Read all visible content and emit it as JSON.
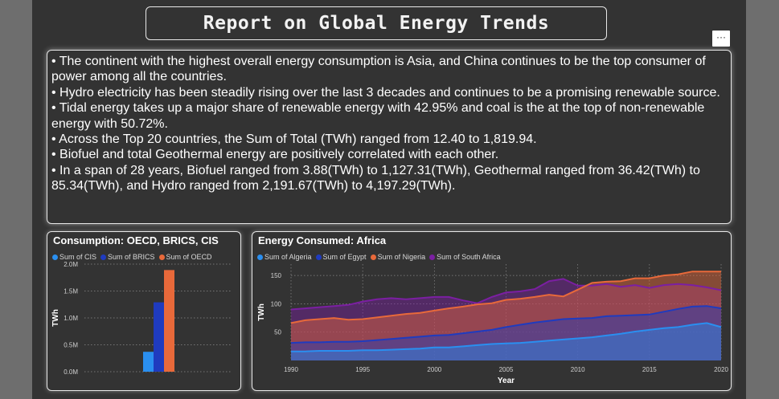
{
  "report": {
    "title": "Report on Global Energy Trends",
    "more_label": "···",
    "bullets": [
      "• The continent with the highest overall energy consumption is Asia, and China continues to be the top consumer of power among all the countries.",
      "• Hydro electricity has been steadily rising over the last 3 decades and continues to be a promising renewable source.",
      "• Tidal energy takes up a major share of renewable energy with 42.95% and coal is the at the top of non-renewable energy with 50.72%.",
      "• Across the Top 20 countries, the Sum of Total (TWh) ranged from 12.40 to 1,819.94.",
      "• Biofuel and total Geothermal energy are positively correlated with each other.",
      "• In a span of 28 years, Biofuel ranged from 3.88(TWh) to 1,127.31(TWh), Geothermal ranged from 36.42(TWh) to 85.34(TWh), and Hydro ranged from 2,191.67(TWh) to 4,197.29(TWh)."
    ]
  },
  "chart_data": [
    {
      "type": "bar",
      "title": "Consumption: OECD, BRICS, CIS",
      "ylabel": "TWh",
      "xlabel": "",
      "ylim": [
        0,
        2000000
      ],
      "yticks": [
        0,
        500000,
        1000000,
        1500000,
        2000000
      ],
      "ytick_labels": [
        "0.0M",
        "0.5M",
        "1.0M",
        "1.5M",
        "2.0M"
      ],
      "grid": true,
      "legend_position": "top-left",
      "categories": [
        ""
      ],
      "series": [
        {
          "name": "Sum of CIS",
          "color": "#2a8ff0",
          "values": [
            370000
          ]
        },
        {
          "name": "Sum of BRICS",
          "color": "#1f3bbf",
          "values": [
            1290000
          ]
        },
        {
          "name": "Sum of OECD",
          "color": "#e8693a",
          "values": [
            1890000
          ]
        }
      ]
    },
    {
      "type": "area",
      "title": "Energy Consumed: Africa",
      "xlabel": "Year",
      "ylabel": "TWh",
      "xlim": [
        1990,
        2020
      ],
      "ylim": [
        0,
        170
      ],
      "xticks": [
        1990,
        1995,
        2000,
        2005,
        2010,
        2015,
        2020
      ],
      "yticks": [
        50,
        100,
        150
      ],
      "grid": true,
      "legend_position": "top-left",
      "x": [
        1990,
        1991,
        1992,
        1993,
        1994,
        1995,
        1996,
        1997,
        1998,
        1999,
        2000,
        2001,
        2002,
        2003,
        2004,
        2005,
        2006,
        2007,
        2008,
        2009,
        2010,
        2011,
        2012,
        2013,
        2014,
        2015,
        2016,
        2017,
        2018,
        2019,
        2020
      ],
      "series": [
        {
          "name": "Sum of Algeria",
          "color": "#2a8ff0",
          "values": [
            16,
            16,
            17,
            17,
            17,
            18,
            18,
            19,
            20,
            21,
            23,
            23,
            25,
            27,
            29,
            30,
            31,
            33,
            35,
            37,
            39,
            41,
            44,
            47,
            51,
            54,
            57,
            59,
            63,
            66,
            59
          ]
        },
        {
          "name": "Sum of Egypt",
          "color": "#1f3bbf",
          "values": [
            31,
            32,
            32,
            33,
            33,
            34,
            36,
            38,
            40,
            42,
            44,
            45,
            48,
            51,
            54,
            59,
            63,
            67,
            70,
            73,
            74,
            75,
            78,
            79,
            80,
            81,
            86,
            91,
            95,
            96,
            92
          ]
        },
        {
          "name": "Sum of Nigeria",
          "color": "#e8693a",
          "values": [
            66,
            71,
            73,
            75,
            72,
            73,
            76,
            79,
            82,
            84,
            88,
            92,
            95,
            99,
            101,
            107,
            109,
            112,
            116,
            113,
            125,
            137,
            139,
            140,
            145,
            145,
            150,
            152,
            157,
            157,
            157
          ]
        },
        {
          "name": "Sum of South Africa",
          "color": "#7b1fa2",
          "values": [
            90,
            92,
            94,
            96,
            98,
            104,
            108,
            110,
            108,
            110,
            112,
            112,
            106,
            101,
            112,
            120,
            122,
            126,
            140,
            144,
            132,
            132,
            135,
            130,
            133,
            128,
            133,
            135,
            133,
            129,
            124
          ]
        }
      ]
    }
  ]
}
